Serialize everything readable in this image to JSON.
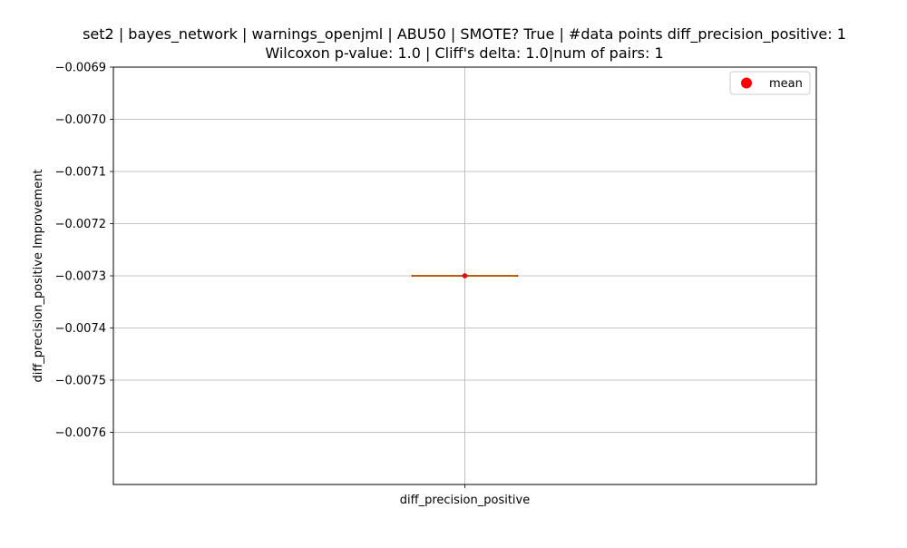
{
  "chart_data": {
    "type": "box",
    "title_line1": "set2 | bayes_network | warnings_openjml | ABU50 | SMOTE? True | #data points diff_precision_positive: 1",
    "title_line2": "Wilcoxon p-value: 1.0 | Cliff's delta: 1.0|num of pairs: 1",
    "xlabel": "",
    "ylabel": "diff_precision_positive Improvement",
    "categories": [
      "diff_precision_positive"
    ],
    "ylim": [
      -0.0077,
      -0.0069
    ],
    "yticks": [
      -0.0069,
      -0.007,
      -0.0071,
      -0.0072,
      -0.0073,
      -0.0074,
      -0.0075,
      -0.0076
    ],
    "ytick_labels": [
      "−0.0069",
      "−0.0070",
      "−0.0071",
      "−0.0072",
      "−0.0073",
      "−0.0074",
      "−0.0075",
      "−0.0076"
    ],
    "grid": true,
    "legend": {
      "position": "top-right",
      "entries": [
        {
          "label": "mean",
          "color": "#ff0000",
          "marker": "circle"
        }
      ]
    },
    "box": {
      "min": -0.0073,
      "q1": -0.0073,
      "median": -0.0073,
      "q3": -0.0073,
      "max": -0.0073,
      "mean": -0.0073,
      "median_color": "#ff7f0e",
      "mean_color": "#ff0000"
    }
  }
}
